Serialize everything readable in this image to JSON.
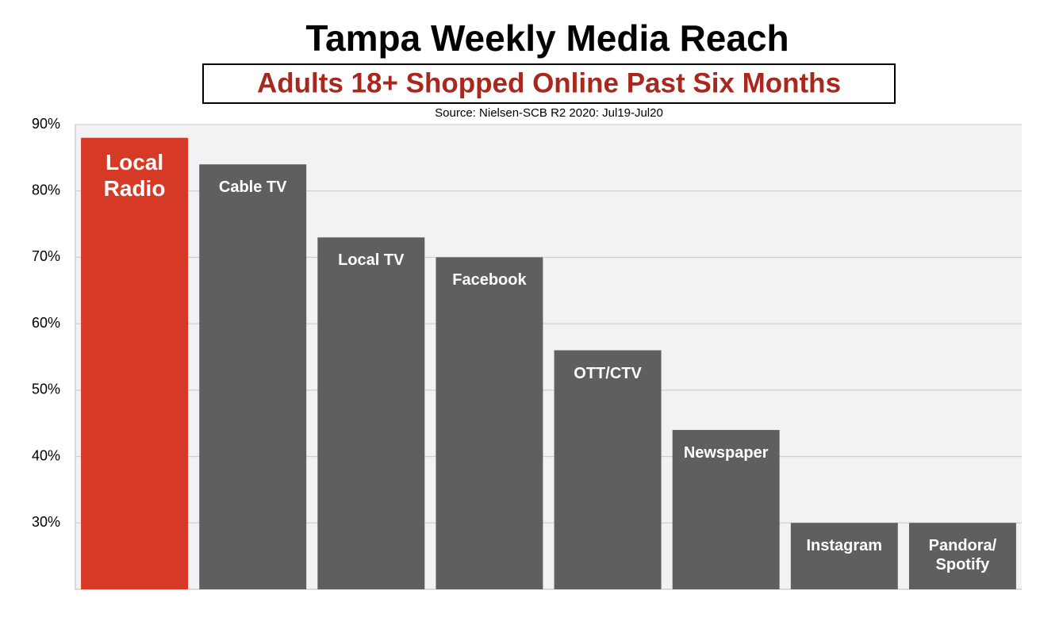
{
  "chart_data": {
    "type": "bar",
    "title": "Tampa Weekly Media Reach",
    "subtitle": "Adults 18+ Shopped Online Past Six Months",
    "source": "Source: Nielsen-SCB R2 2020: Jul19-Jul20",
    "categories": [
      "Local\nRadio",
      "Cable TV",
      "Local TV",
      "Facebook",
      "OTT/CTV",
      "Newspaper",
      "Instagram",
      "Pandora/\nSpotify"
    ],
    "values": [
      88,
      84,
      73,
      70,
      56,
      44,
      30,
      30
    ],
    "colors": [
      "#d63a26",
      "#5f5f5f",
      "#5f5f5f",
      "#5f5f5f",
      "#5f5f5f",
      "#5f5f5f",
      "#5f5f5f",
      "#5f5f5f"
    ],
    "ylim": [
      20,
      90
    ],
    "yticks": [
      {
        "value": 30,
        "label": "30%"
      },
      {
        "value": 40,
        "label": "40%"
      },
      {
        "value": 50,
        "label": "50%"
      },
      {
        "value": 60,
        "label": "60%"
      },
      {
        "value": 70,
        "label": "70%"
      },
      {
        "value": 80,
        "label": "80%"
      },
      {
        "value": 90,
        "label": "90%"
      }
    ],
    "grid": true
  }
}
